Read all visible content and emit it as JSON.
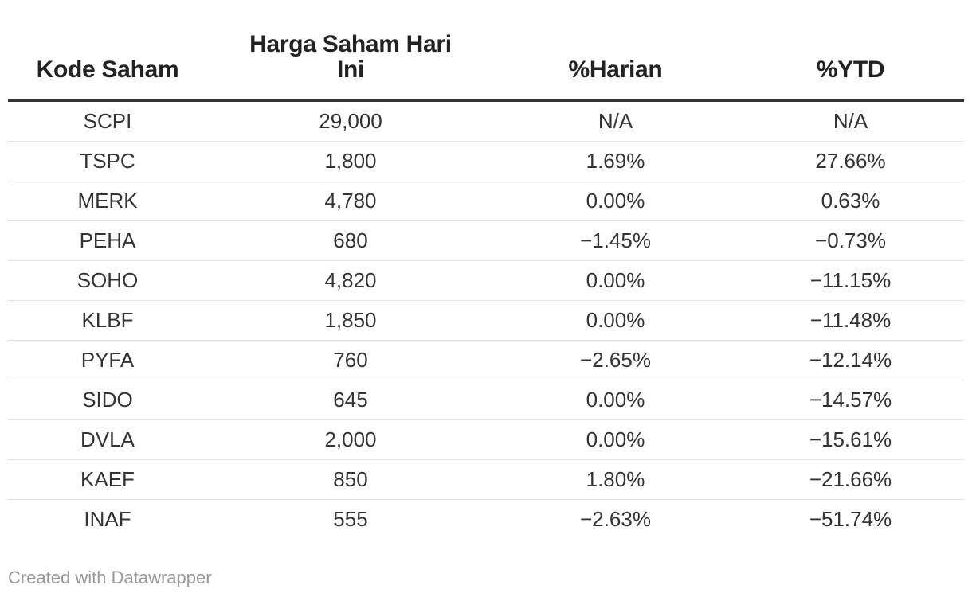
{
  "chart_data": {
    "type": "table",
    "columns": [
      "Kode Saham",
      "Harga Saham Hari Ini",
      "%Harian",
      "%YTD"
    ],
    "rows": [
      [
        "SCPI",
        "29,000",
        "N/A",
        "N/A"
      ],
      [
        "TSPC",
        "1,800",
        "1.69%",
        "27.66%"
      ],
      [
        "MERK",
        "4,780",
        "0.00%",
        "0.63%"
      ],
      [
        "PEHA",
        "680",
        "−1.45%",
        "−0.73%"
      ],
      [
        "SOHO",
        "4,820",
        "0.00%",
        "−11.15%"
      ],
      [
        "KLBF",
        "1,850",
        "0.00%",
        "−11.48%"
      ],
      [
        "PYFA",
        "760",
        "−2.65%",
        "−12.14%"
      ],
      [
        "SIDO",
        "645",
        "0.00%",
        "−14.57%"
      ],
      [
        "DVLA",
        "2,000",
        "0.00%",
        "−15.61%"
      ],
      [
        "KAEF",
        "850",
        "1.80%",
        "−21.66%"
      ],
      [
        "INAF",
        "555",
        "−2.63%",
        "−51.74%"
      ]
    ]
  },
  "footer": "Created with Datawrapper"
}
